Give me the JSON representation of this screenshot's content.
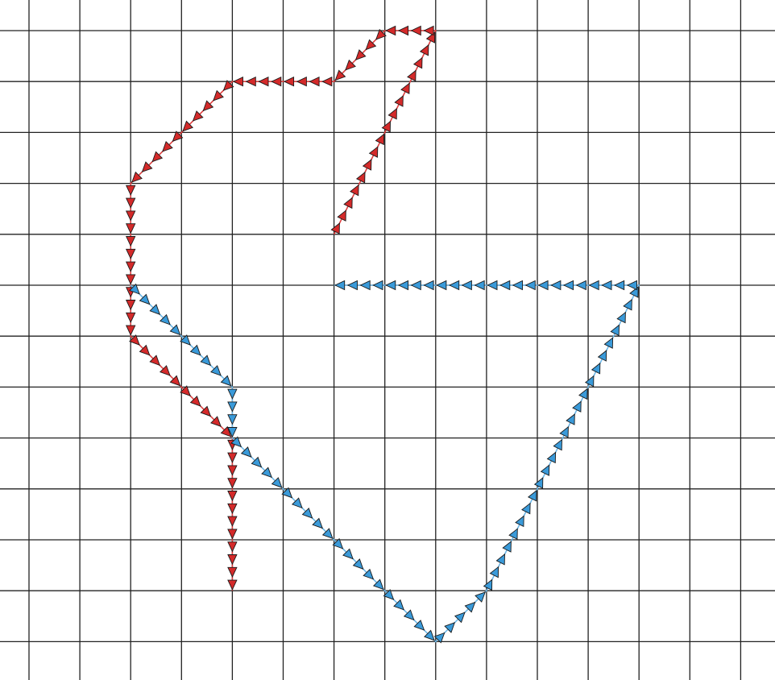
{
  "colors": {
    "background": "#ffffff",
    "grid": "#222222",
    "blue_fill": "#3a9ad9",
    "blue_line": "#6fb8e8",
    "red_fill": "#d42a2a",
    "red_line": "#e04040",
    "marker_stroke": "#1a1a1a"
  },
  "grid": {
    "rows": 13,
    "cols": 15
  },
  "paths": [
    {
      "name": "red-path",
      "color": "red",
      "description_marker": "arrowhead",
      "cells": [
        [
          6,
          4
        ],
        [
          8,
          0
        ],
        [
          7,
          0
        ],
        [
          6,
          1
        ],
        [
          5,
          1
        ],
        [
          4,
          1
        ],
        [
          3,
          2
        ],
        [
          2,
          3
        ],
        [
          2,
          4
        ],
        [
          2,
          5
        ],
        [
          2,
          6
        ],
        [
          3,
          7
        ],
        [
          4,
          8
        ],
        [
          4,
          9
        ],
        [
          4,
          10
        ],
        [
          4,
          11
        ]
      ]
    },
    {
      "name": "blue-path",
      "color": "blue",
      "description_marker": "arrowhead",
      "cells": [
        [
          2,
          5
        ],
        [
          3,
          6
        ],
        [
          4,
          7
        ],
        [
          4,
          8
        ],
        [
          5,
          9
        ],
        [
          6,
          10
        ],
        [
          7,
          11
        ],
        [
          8,
          12
        ],
        [
          9,
          11
        ],
        [
          10,
          9
        ],
        [
          11,
          7
        ],
        [
          12,
          5
        ],
        [
          11,
          5
        ],
        [
          10,
          5
        ],
        [
          9,
          5
        ],
        [
          8,
          5
        ],
        [
          7,
          5
        ],
        [
          6,
          5
        ]
      ]
    }
  ]
}
